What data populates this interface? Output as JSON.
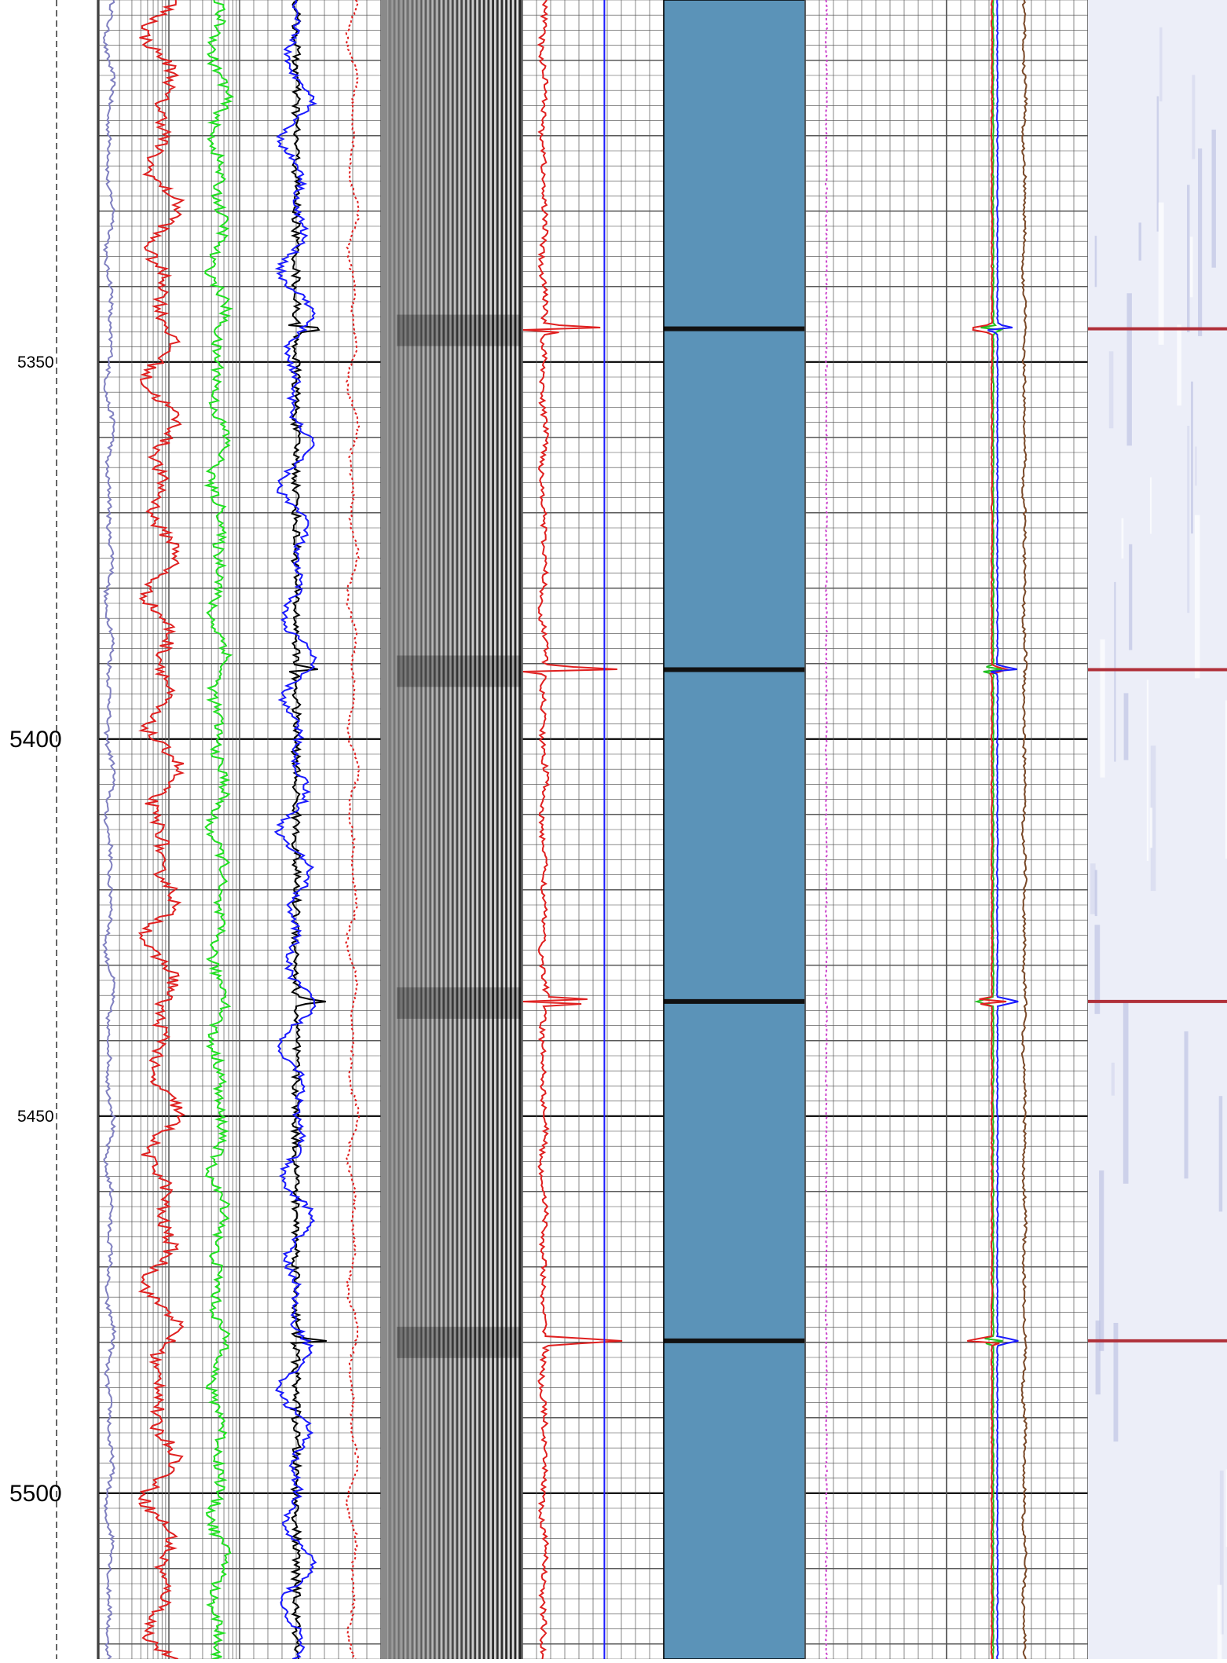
{
  "chart_data": {
    "type": "line",
    "title": "",
    "xlabel": "",
    "ylabel": "",
    "depth_range": [
      5302,
      5522
    ],
    "depth_ticks": [
      {
        "value": 5350,
        "label": "5350",
        "major": false
      },
      {
        "value": 5400,
        "label": "5400",
        "major": true
      },
      {
        "value": 5450,
        "label": "5450",
        "major": false
      },
      {
        "value": 5500,
        "label": "5500",
        "major": true
      }
    ],
    "joint_depths": [
      5345.6,
      5390.8,
      5434.8,
      5479.8,
      5525.1
    ],
    "grid": true,
    "legend": "none",
    "tracks": [
      {
        "name": "",
        "kind": "curves",
        "grid": "log",
        "curves": [
          {
            "color": "#8080c0",
            "base": 0.08,
            "amp": 0.03,
            "noise": 0.015
          },
          {
            "color": "#e02020",
            "base": 0.45,
            "amp": 0.12,
            "noise": 0.05
          },
          {
            "color": "#20e020",
            "base": 0.85,
            "amp": 0.06,
            "noise": 0.04
          }
        ]
      },
      {
        "name": "",
        "kind": "curves",
        "grid": "linear",
        "curves": [
          {
            "color": "#000000",
            "base": 0.4,
            "amp": 0.0,
            "noise": 0.03,
            "spike": 0.2
          },
          {
            "color": "#1a1aff",
            "base": 0.4,
            "amp": 0.12,
            "noise": 0.03
          },
          {
            "color": "#e02020",
            "base": 0.8,
            "amp": 0.04,
            "noise": 0.01,
            "dotted": true
          }
        ]
      },
      {
        "name": "",
        "kind": "waveform"
      },
      {
        "name": "",
        "kind": "curves",
        "grid": "linear",
        "curves": [
          {
            "color": "#e02020",
            "base": 0.15,
            "amp": 0.02,
            "noise": 0.02,
            "spike": 0.55
          },
          {
            "color": "#1a1aff",
            "base": 0.58,
            "amp": 0.0,
            "noise": 0.0
          }
        ]
      },
      {
        "name": "",
        "kind": "image",
        "palette": [
          "#2f6f98",
          "#5b93b8",
          "#b9d3e4",
          "#ffffff",
          "#c9a24a",
          "#8a5a22"
        ]
      },
      {
        "name": "",
        "kind": "curves",
        "grid": "linear",
        "curves": [
          {
            "color": "#cc44cc",
            "base": 0.15,
            "amp": 0.0,
            "noise": 0.005,
            "dotted": true
          }
        ]
      },
      {
        "name": "",
        "kind": "curves",
        "grid": "linear",
        "curves": [
          {
            "color": "#20c020",
            "base": 0.33,
            "amp": 0.0,
            "noise": 0.004,
            "spike": -0.12
          },
          {
            "color": "#e02020",
            "base": 0.32,
            "amp": 0.0,
            "noise": 0.004,
            "spike": -0.18
          },
          {
            "color": "#1a1aff",
            "base": 0.36,
            "amp": 0.0,
            "noise": 0.004,
            "spike": 0.15
          },
          {
            "color": "#7a4a2a",
            "base": 0.55,
            "amp": 0.01,
            "noise": 0.01
          }
        ]
      },
      {
        "name": "",
        "kind": "image2",
        "palette": [
          "#eceef8",
          "#d6d9ee",
          "#c0c4e4",
          "#ffffff"
        ]
      }
    ]
  }
}
